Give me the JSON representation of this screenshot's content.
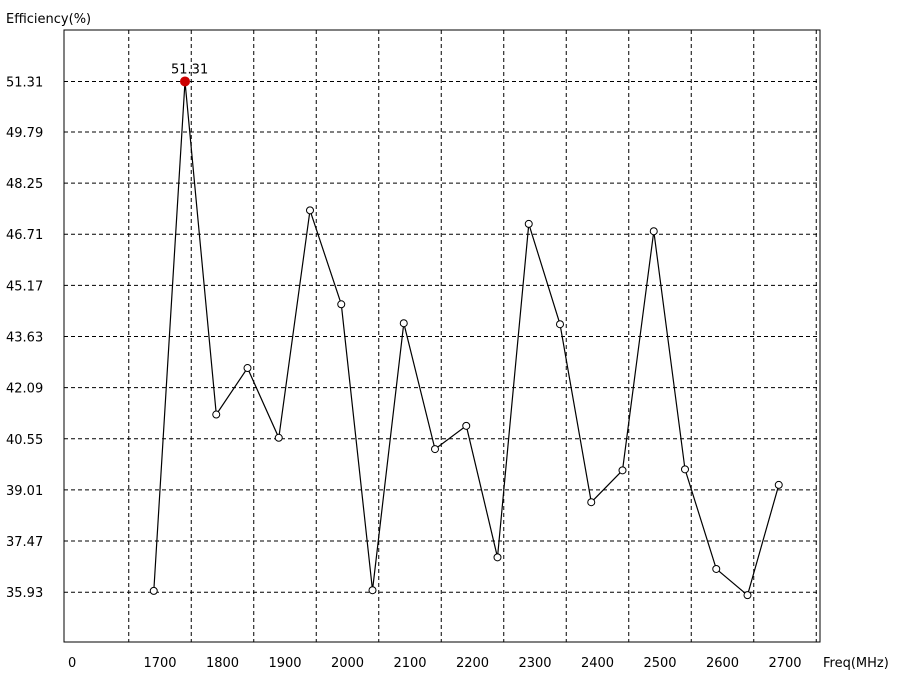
{
  "chart_data": {
    "type": "line",
    "ylabel": "Efficiency(%)",
    "xlabel": "Freq(MHz)",
    "x_origin_label": "0",
    "x_ticks": [
      "1700",
      "1800",
      "1900",
      "2000",
      "2100",
      "2200",
      "2300",
      "2400",
      "2500",
      "2600",
      "2700"
    ],
    "y_ticks": [
      "51.31",
      "49.79",
      "48.25",
      "46.71",
      "45.17",
      "43.63",
      "42.09",
      "40.55",
      "39.01",
      "37.47",
      "35.93"
    ],
    "ylim": [
      34.43,
      52.86
    ],
    "grid": true,
    "peak_label": "51.31",
    "peak_color": "#cc0000",
    "line_color": "#000000",
    "x": [
      1690,
      1740,
      1790,
      1840,
      1890,
      1940,
      1990,
      2040,
      2090,
      2140,
      2190,
      2240,
      2290,
      2340,
      2390,
      2440,
      2490,
      2540,
      2590,
      2640,
      2690
    ],
    "values": [
      35.97,
      51.31,
      41.28,
      42.68,
      40.58,
      47.43,
      44.6,
      35.99,
      44.03,
      40.24,
      40.94,
      36.98,
      47.02,
      44.0,
      38.64,
      39.6,
      46.8,
      39.63,
      36.63,
      35.84,
      39.16
    ]
  }
}
